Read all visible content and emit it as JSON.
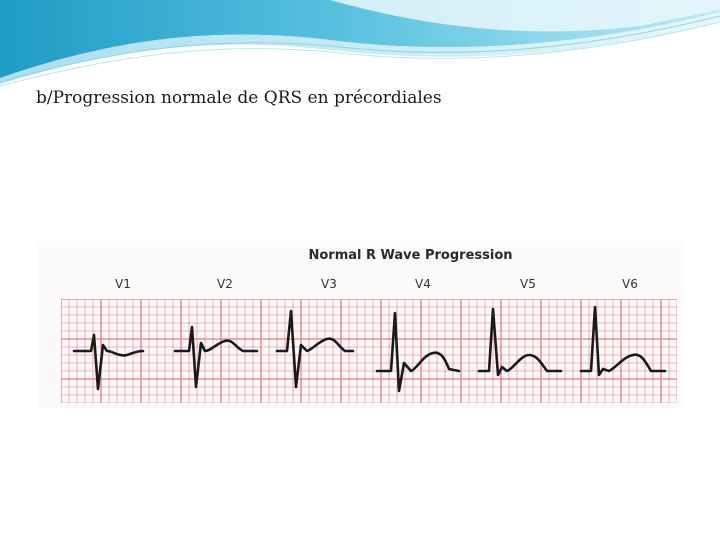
{
  "slide": {
    "title": "b/Progression normale de QRS en précordiales"
  },
  "figure": {
    "title": "Normal R Wave Progression",
    "leads": [
      "V1",
      "V2",
      "V3",
      "V4",
      "V5",
      "V6"
    ],
    "grid_color": "#e97b7b",
    "trace_color": "#1a1a1a"
  },
  "theme": {
    "header_colors": [
      "#2aa3cc",
      "#7fd0e6",
      "#cdeef6"
    ]
  }
}
